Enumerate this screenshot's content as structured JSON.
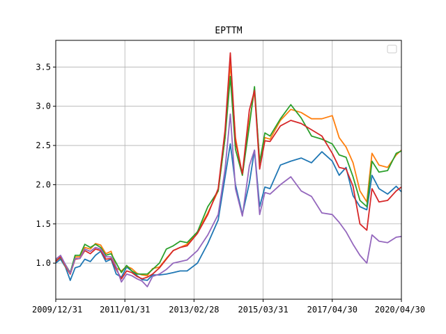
{
  "chart_data": {
    "type": "line",
    "title": "EPTTM",
    "xlabel": "",
    "ylabel": "",
    "x_ticks": [
      "2009/12/31",
      "2011/01/31",
      "2013/02/28",
      "2015/03/31",
      "2017/04/30",
      "2020/04/30"
    ],
    "y_ticks": [
      "1.0",
      "1.5",
      "2.0",
      "2.5",
      "3.0",
      "3.5"
    ],
    "ylim": [
      0.54,
      3.84
    ],
    "xlim": [
      0,
      10
    ],
    "grid": true,
    "legend": {
      "placement": "top-right",
      "entries": []
    },
    "series": [
      {
        "color": "#1f77b4",
        "points": [
          [
            0,
            1.0
          ],
          [
            0.14,
            1.05
          ],
          [
            0.28,
            0.95
          ],
          [
            0.42,
            0.78
          ],
          [
            0.56,
            0.94
          ],
          [
            0.7,
            0.96
          ],
          [
            0.84,
            1.05
          ],
          [
            1,
            1.02
          ],
          [
            1.15,
            1.1
          ],
          [
            1.3,
            1.15
          ],
          [
            1.45,
            1.02
          ],
          [
            1.6,
            1.05
          ],
          [
            1.75,
            0.86
          ],
          [
            1.9,
            0.82
          ],
          [
            2.05,
            0.95
          ],
          [
            2.2,
            0.9
          ],
          [
            2.35,
            0.84
          ],
          [
            2.5,
            0.79
          ],
          [
            2.65,
            0.78
          ],
          [
            2.8,
            0.85
          ],
          [
            3.0,
            0.85
          ],
          [
            3.2,
            0.86
          ],
          [
            3.4,
            0.88
          ],
          [
            3.6,
            0.9
          ],
          [
            3.8,
            0.9
          ],
          [
            4.1,
            1.0
          ],
          [
            4.4,
            1.25
          ],
          [
            4.7,
            1.55
          ],
          [
            4.9,
            2.1
          ],
          [
            5.05,
            2.52
          ],
          [
            5.2,
            2.0
          ],
          [
            5.4,
            1.62
          ],
          [
            5.6,
            2.02
          ],
          [
            5.75,
            2.44
          ],
          [
            5.9,
            1.72
          ],
          [
            6.05,
            1.97
          ],
          [
            6.2,
            1.95
          ],
          [
            6.5,
            2.25
          ],
          [
            6.8,
            2.3
          ],
          [
            7.1,
            2.34
          ],
          [
            7.4,
            2.28
          ],
          [
            7.7,
            2.42
          ],
          [
            8.0,
            2.3
          ],
          [
            8.2,
            2.12
          ],
          [
            8.4,
            2.22
          ],
          [
            8.6,
            1.86
          ],
          [
            8.8,
            1.72
          ],
          [
            9.0,
            1.68
          ],
          [
            9.15,
            2.12
          ],
          [
            9.35,
            1.95
          ],
          [
            9.6,
            1.88
          ],
          [
            9.85,
            1.98
          ],
          [
            10.0,
            1.91
          ]
        ]
      },
      {
        "color": "#ff7f0e",
        "points": [
          [
            0,
            1.05
          ],
          [
            0.14,
            1.08
          ],
          [
            0.28,
            0.96
          ],
          [
            0.42,
            0.86
          ],
          [
            0.56,
            1.08
          ],
          [
            0.7,
            1.08
          ],
          [
            0.84,
            1.2
          ],
          [
            1,
            1.18
          ],
          [
            1.15,
            1.25
          ],
          [
            1.3,
            1.23
          ],
          [
            1.45,
            1.12
          ],
          [
            1.6,
            1.15
          ],
          [
            1.75,
            0.94
          ],
          [
            1.9,
            0.9
          ],
          [
            2.05,
            0.96
          ],
          [
            2.2,
            0.93
          ],
          [
            2.35,
            0.87
          ],
          [
            2.5,
            0.85
          ],
          [
            2.65,
            0.84
          ],
          [
            2.8,
            0.93
          ],
          [
            3.0,
            0.95
          ],
          [
            3.2,
            1.06
          ],
          [
            3.4,
            1.16
          ],
          [
            3.6,
            1.2
          ],
          [
            3.8,
            1.24
          ],
          [
            4.1,
            1.4
          ],
          [
            4.4,
            1.64
          ],
          [
            4.7,
            1.92
          ],
          [
            4.9,
            2.6
          ],
          [
            5.05,
            3.55
          ],
          [
            5.2,
            2.6
          ],
          [
            5.4,
            2.12
          ],
          [
            5.6,
            2.8
          ],
          [
            5.75,
            3.2
          ],
          [
            5.9,
            2.3
          ],
          [
            6.05,
            2.6
          ],
          [
            6.2,
            2.58
          ],
          [
            6.5,
            2.82
          ],
          [
            6.8,
            2.96
          ],
          [
            7.1,
            2.92
          ],
          [
            7.4,
            2.84
          ],
          [
            7.7,
            2.84
          ],
          [
            8.0,
            2.88
          ],
          [
            8.2,
            2.6
          ],
          [
            8.4,
            2.48
          ],
          [
            8.6,
            2.28
          ],
          [
            8.8,
            1.92
          ],
          [
            9.0,
            1.78
          ],
          [
            9.15,
            2.4
          ],
          [
            9.35,
            2.25
          ],
          [
            9.6,
            2.22
          ],
          [
            9.85,
            2.38
          ],
          [
            10.0,
            2.44
          ]
        ]
      },
      {
        "color": "#2ca02c",
        "points": [
          [
            0,
            1.03
          ],
          [
            0.14,
            1.07
          ],
          [
            0.28,
            0.98
          ],
          [
            0.42,
            0.88
          ],
          [
            0.56,
            1.1
          ],
          [
            0.7,
            1.1
          ],
          [
            0.84,
            1.24
          ],
          [
            1,
            1.2
          ],
          [
            1.15,
            1.24
          ],
          [
            1.3,
            1.2
          ],
          [
            1.45,
            1.1
          ],
          [
            1.6,
            1.12
          ],
          [
            1.75,
            1.0
          ],
          [
            1.9,
            0.88
          ],
          [
            2.05,
            0.97
          ],
          [
            2.2,
            0.9
          ],
          [
            2.35,
            0.86
          ],
          [
            2.5,
            0.86
          ],
          [
            2.65,
            0.86
          ],
          [
            2.8,
            0.92
          ],
          [
            3.0,
            1.0
          ],
          [
            3.2,
            1.18
          ],
          [
            3.4,
            1.22
          ],
          [
            3.6,
            1.28
          ],
          [
            3.8,
            1.26
          ],
          [
            4.1,
            1.4
          ],
          [
            4.4,
            1.72
          ],
          [
            4.7,
            1.92
          ],
          [
            4.9,
            2.6
          ],
          [
            5.05,
            3.38
          ],
          [
            5.2,
            2.45
          ],
          [
            5.4,
            2.12
          ],
          [
            5.6,
            2.75
          ],
          [
            5.75,
            3.25
          ],
          [
            5.9,
            2.28
          ],
          [
            6.05,
            2.66
          ],
          [
            6.2,
            2.62
          ],
          [
            6.5,
            2.84
          ],
          [
            6.8,
            3.02
          ],
          [
            7.1,
            2.85
          ],
          [
            7.4,
            2.62
          ],
          [
            7.7,
            2.58
          ],
          [
            8.0,
            2.52
          ],
          [
            8.2,
            2.38
          ],
          [
            8.4,
            2.35
          ],
          [
            8.6,
            2.1
          ],
          [
            8.8,
            1.8
          ],
          [
            9.0,
            1.72
          ],
          [
            9.15,
            2.3
          ],
          [
            9.35,
            2.16
          ],
          [
            9.6,
            2.18
          ],
          [
            9.85,
            2.4
          ],
          [
            10.0,
            2.43
          ]
        ]
      },
      {
        "color": "#d62728",
        "points": [
          [
            0,
            1.02
          ],
          [
            0.14,
            1.08
          ],
          [
            0.28,
            0.97
          ],
          [
            0.42,
            0.86
          ],
          [
            0.56,
            1.05
          ],
          [
            0.7,
            1.06
          ],
          [
            0.84,
            1.16
          ],
          [
            1,
            1.12
          ],
          [
            1.15,
            1.18
          ],
          [
            1.3,
            1.16
          ],
          [
            1.45,
            1.05
          ],
          [
            1.6,
            1.06
          ],
          [
            1.75,
            0.92
          ],
          [
            1.9,
            0.8
          ],
          [
            2.05,
            0.9
          ],
          [
            2.2,
            0.88
          ],
          [
            2.35,
            0.83
          ],
          [
            2.5,
            0.8
          ],
          [
            2.65,
            0.82
          ],
          [
            2.8,
            0.86
          ],
          [
            3.0,
            0.94
          ],
          [
            3.2,
            1.05
          ],
          [
            3.4,
            1.16
          ],
          [
            3.6,
            1.2
          ],
          [
            3.8,
            1.22
          ],
          [
            4.1,
            1.38
          ],
          [
            4.4,
            1.62
          ],
          [
            4.7,
            1.95
          ],
          [
            4.9,
            2.7
          ],
          [
            5.05,
            3.68
          ],
          [
            5.2,
            2.55
          ],
          [
            5.4,
            2.14
          ],
          [
            5.6,
            2.95
          ],
          [
            5.75,
            3.2
          ],
          [
            5.9,
            2.2
          ],
          [
            6.05,
            2.56
          ],
          [
            6.2,
            2.55
          ],
          [
            6.5,
            2.75
          ],
          [
            6.8,
            2.82
          ],
          [
            7.1,
            2.78
          ],
          [
            7.4,
            2.7
          ],
          [
            7.7,
            2.62
          ],
          [
            8.0,
            2.4
          ],
          [
            8.2,
            2.22
          ],
          [
            8.4,
            2.2
          ],
          [
            8.6,
            1.98
          ],
          [
            8.8,
            1.5
          ],
          [
            9.0,
            1.42
          ],
          [
            9.15,
            1.95
          ],
          [
            9.35,
            1.78
          ],
          [
            9.6,
            1.8
          ],
          [
            9.85,
            1.92
          ],
          [
            10.0,
            1.97
          ]
        ]
      },
      {
        "color": "#9467bd",
        "points": [
          [
            0,
            1.05
          ],
          [
            0.14,
            1.1
          ],
          [
            0.28,
            0.98
          ],
          [
            0.42,
            0.87
          ],
          [
            0.56,
            1.06
          ],
          [
            0.7,
            1.06
          ],
          [
            0.84,
            1.18
          ],
          [
            1,
            1.15
          ],
          [
            1.15,
            1.2
          ],
          [
            1.3,
            1.18
          ],
          [
            1.45,
            1.08
          ],
          [
            1.6,
            1.08
          ],
          [
            1.75,
            0.95
          ],
          [
            1.9,
            0.76
          ],
          [
            2.05,
            0.86
          ],
          [
            2.2,
            0.84
          ],
          [
            2.35,
            0.8
          ],
          [
            2.5,
            0.77
          ],
          [
            2.65,
            0.7
          ],
          [
            2.8,
            0.83
          ],
          [
            3.0,
            0.86
          ],
          [
            3.2,
            0.92
          ],
          [
            3.4,
            1.0
          ],
          [
            3.6,
            1.02
          ],
          [
            3.8,
            1.04
          ],
          [
            4.1,
            1.16
          ],
          [
            4.4,
            1.36
          ],
          [
            4.7,
            1.62
          ],
          [
            4.9,
            2.2
          ],
          [
            5.05,
            2.9
          ],
          [
            5.2,
            1.95
          ],
          [
            5.4,
            1.6
          ],
          [
            5.6,
            2.24
          ],
          [
            5.75,
            2.44
          ],
          [
            5.9,
            1.62
          ],
          [
            6.05,
            1.9
          ],
          [
            6.2,
            1.88
          ],
          [
            6.5,
            2.0
          ],
          [
            6.8,
            2.1
          ],
          [
            7.1,
            1.92
          ],
          [
            7.4,
            1.85
          ],
          [
            7.7,
            1.64
          ],
          [
            8.0,
            1.62
          ],
          [
            8.2,
            1.52
          ],
          [
            8.4,
            1.4
          ],
          [
            8.6,
            1.24
          ],
          [
            8.8,
            1.1
          ],
          [
            9.0,
            1.0
          ],
          [
            9.15,
            1.36
          ],
          [
            9.35,
            1.28
          ],
          [
            9.6,
            1.26
          ],
          [
            9.85,
            1.33
          ],
          [
            10.0,
            1.34
          ]
        ]
      }
    ]
  }
}
